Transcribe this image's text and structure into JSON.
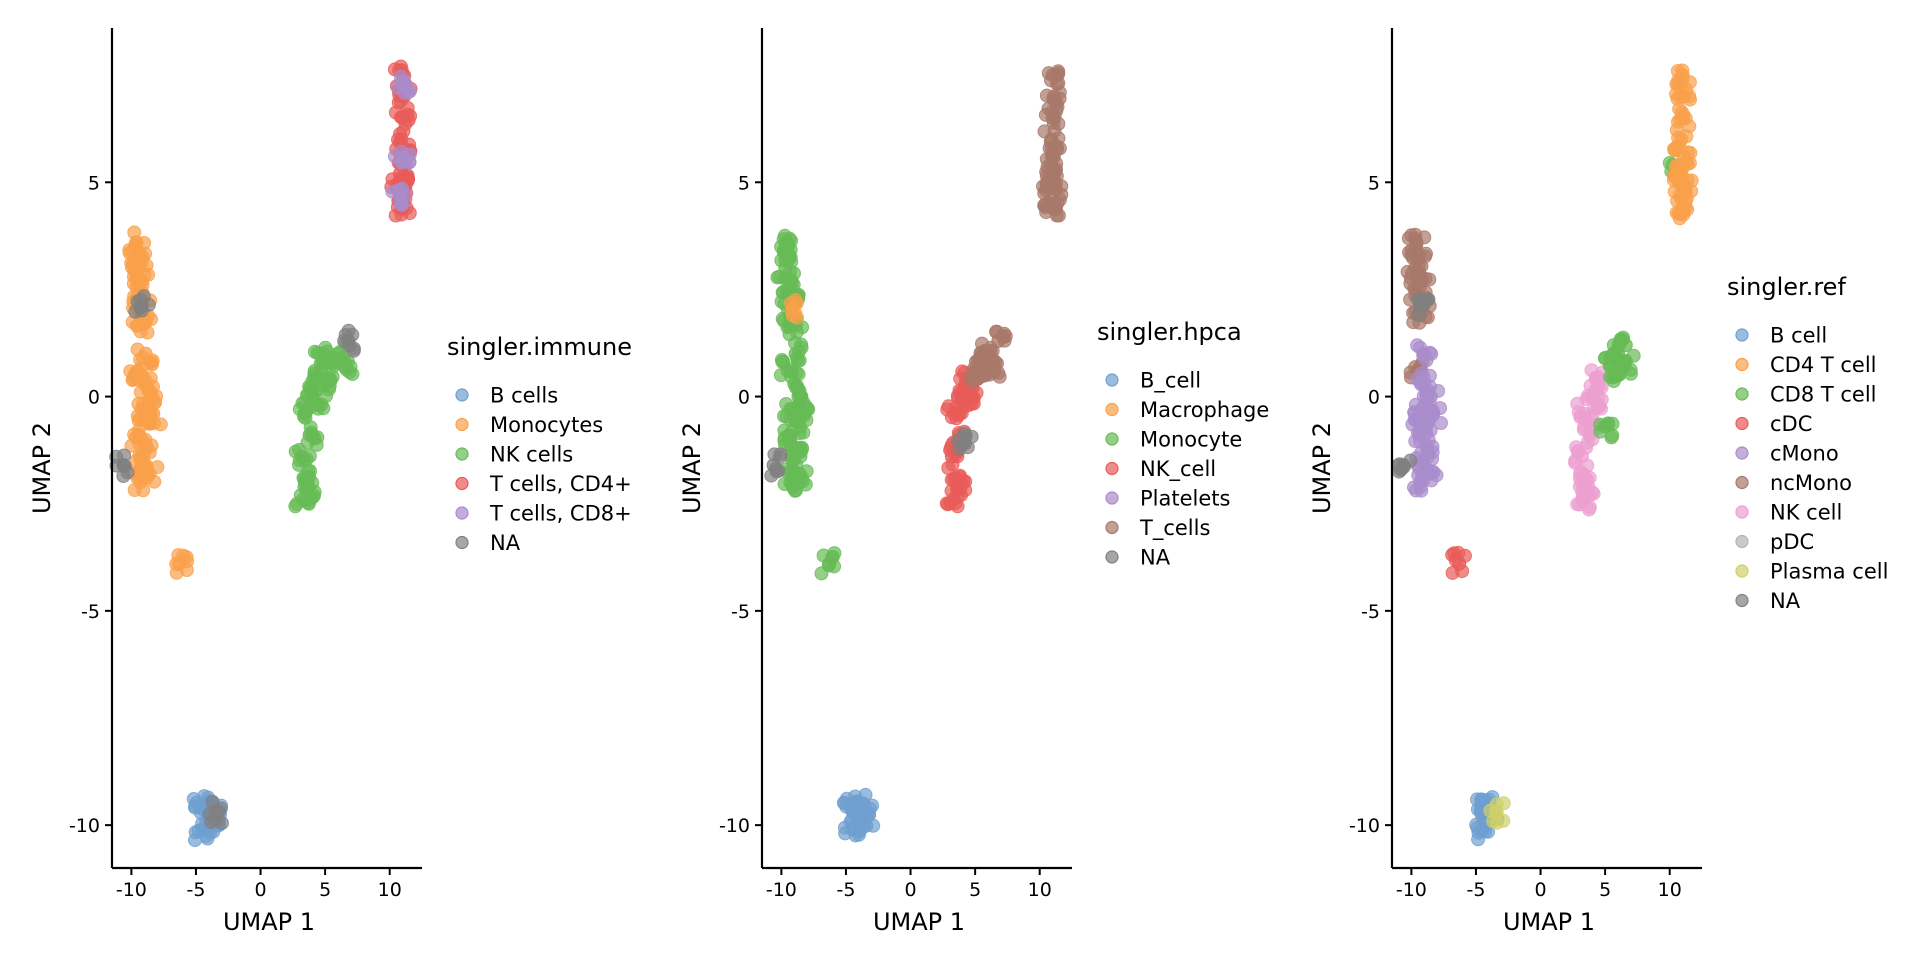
{
  "chart_data": [
    {
      "type": "scatter",
      "xlabel": "UMAP 1",
      "ylabel": "UMAP 2",
      "xlim": [
        -11.5,
        12.5
      ],
      "ylim": [
        -11,
        8.6
      ],
      "xticks": [
        -10,
        -5,
        0,
        5,
        10
      ],
      "xtick_labels": [
        "-10",
        "-5",
        "0",
        "5",
        "10"
      ],
      "yticks": [
        -10,
        -5,
        0,
        5
      ],
      "ytick_labels": [
        "-10",
        "-5",
        "0",
        "5"
      ],
      "legend": {
        "title": "singler.immune",
        "entries": [
          {
            "label": "B cells",
            "color": "#6f9fd0"
          },
          {
            "label": "Monocytes",
            "color": "#f9a04a"
          },
          {
            "label": "NK cells",
            "color": "#66bb55"
          },
          {
            "label": "T cells, CD4+",
            "color": "#e85b58"
          },
          {
            "label": "T cells, CD8+",
            "color": "#a98ccc"
          },
          {
            "label": "NA",
            "color": "#808080"
          }
        ]
      },
      "clusters": [
        {
          "label": "Monocytes",
          "points": [
            [
              -9.6,
              3.6
            ],
            [
              -9.4,
              3.3
            ],
            [
              -9.7,
              3.0
            ],
            [
              -9.2,
              2.7
            ],
            [
              -9.5,
              2.4
            ],
            [
              -9.1,
              2.2
            ],
            [
              -9.3,
              1.9
            ],
            [
              -9.0,
              1.7
            ]
          ]
        },
        {
          "label": "Monocytes",
          "points": [
            [
              -9.5,
              0.6
            ],
            [
              -9.0,
              0.3
            ],
            [
              -8.5,
              0.0
            ],
            [
              -9.2,
              -0.3
            ],
            [
              -8.7,
              -0.6
            ],
            [
              -9.4,
              -0.9
            ],
            [
              -8.8,
              -1.2
            ],
            [
              -9.1,
              -1.5
            ],
            [
              -8.6,
              -1.8
            ],
            [
              -9.3,
              -2.0
            ],
            [
              -8.3,
              -0.4
            ],
            [
              -8.9,
              1.0
            ]
          ]
        },
        {
          "label": "Monocytes",
          "points": [
            [
              -6.3,
              -3.9
            ]
          ]
        },
        {
          "label": "NK cells",
          "points": [
            [
              3.3,
              -2.4
            ],
            [
              3.5,
              -1.9
            ],
            [
              3.2,
              -1.4
            ],
            [
              3.8,
              -0.9
            ],
            [
              3.4,
              -0.4
            ],
            [
              4.0,
              0.0
            ],
            [
              4.3,
              0.4
            ],
            [
              4.8,
              0.8
            ],
            [
              5.4,
              0.9
            ],
            [
              6.0,
              1.0
            ],
            [
              6.5,
              0.7
            ],
            [
              3.7,
              -2.1
            ],
            [
              4.5,
              -0.2
            ],
            [
              5.2,
              0.4
            ]
          ]
        },
        {
          "label": "T cells, CD4+",
          "points": [
            [
              11.0,
              7.5
            ],
            [
              11.1,
              7.0
            ],
            [
              11.0,
              6.5
            ],
            [
              10.9,
              6.0
            ],
            [
              11.1,
              5.6
            ],
            [
              10.8,
              5.2
            ],
            [
              11.2,
              4.9
            ],
            [
              10.9,
              4.6
            ],
            [
              11.0,
              4.4
            ],
            [
              10.7,
              5.0
            ]
          ]
        },
        {
          "label": "T cells, CD8+",
          "points": [
            [
              11.2,
              7.3
            ],
            [
              11.0,
              5.5
            ],
            [
              10.8,
              4.7
            ]
          ]
        },
        {
          "label": "B cells",
          "points": [
            [
              -4.6,
              -9.6
            ],
            [
              -4.2,
              -9.9
            ],
            [
              -3.7,
              -9.7
            ],
            [
              -4.5,
              -10.1
            ],
            [
              -3.4,
              -9.8
            ],
            [
              -4.0,
              -9.5
            ]
          ]
        },
        {
          "label": "NA",
          "points": [
            [
              -10.6,
              -1.6
            ],
            [
              -9.2,
              2.1
            ],
            [
              -3.5,
              -9.7
            ],
            [
              6.8,
              1.3
            ]
          ]
        }
      ]
    },
    {
      "type": "scatter",
      "xlabel": "UMAP 1",
      "ylabel": "UMAP 2",
      "xlim": [
        -11.5,
        12.5
      ],
      "ylim": [
        -11,
        8.6
      ],
      "xticks": [
        -10,
        -5,
        0,
        5,
        10
      ],
      "xtick_labels": [
        "-10",
        "-5",
        "0",
        "5",
        "10"
      ],
      "yticks": [
        -10,
        -5,
        0,
        5
      ],
      "ytick_labels": [
        "-10",
        "-5",
        "0",
        "5"
      ],
      "legend": {
        "title": "singler.hpca",
        "entries": [
          {
            "label": "B_cell",
            "color": "#6f9fd0"
          },
          {
            "label": "Macrophage",
            "color": "#f9a04a"
          },
          {
            "label": "Monocyte",
            "color": "#66bb55"
          },
          {
            "label": "NK_cell",
            "color": "#e85b58"
          },
          {
            "label": "Platelets",
            "color": "#a98ccc"
          },
          {
            "label": "T_cells",
            "color": "#a8786a"
          },
          {
            "label": "NA",
            "color": "#808080"
          }
        ]
      },
      "clusters": [
        {
          "label": "Monocyte",
          "points": [
            [
              -9.6,
              3.6
            ],
            [
              -9.4,
              3.3
            ],
            [
              -9.7,
              3.0
            ],
            [
              -9.2,
              2.7
            ],
            [
              -9.5,
              2.4
            ],
            [
              -9.1,
              2.2
            ],
            [
              -9.3,
              1.9
            ],
            [
              -9.0,
              1.7
            ]
          ]
        },
        {
          "label": "Monocyte",
          "points": [
            [
              -9.5,
              0.6
            ],
            [
              -9.0,
              0.3
            ],
            [
              -8.5,
              0.0
            ],
            [
              -9.2,
              -0.3
            ],
            [
              -8.7,
              -0.6
            ],
            [
              -9.4,
              -0.9
            ],
            [
              -8.8,
              -1.2
            ],
            [
              -9.1,
              -1.5
            ],
            [
              -8.6,
              -1.8
            ],
            [
              -9.3,
              -2.0
            ],
            [
              -8.3,
              -0.4
            ],
            [
              -8.9,
              1.0
            ]
          ]
        },
        {
          "label": "Monocyte",
          "points": [
            [
              -6.3,
              -3.9
            ]
          ]
        },
        {
          "label": "Macrophage",
          "points": [
            [
              -9.2,
              2.0
            ]
          ]
        },
        {
          "label": "NK_cell",
          "points": [
            [
              3.3,
              -2.4
            ],
            [
              3.5,
              -1.9
            ],
            [
              3.2,
              -1.4
            ],
            [
              3.8,
              -0.9
            ],
            [
              3.4,
              -0.4
            ],
            [
              4.0,
              0.0
            ],
            [
              4.3,
              0.4
            ],
            [
              4.8,
              0.2
            ],
            [
              3.7,
              -2.1
            ],
            [
              4.5,
              -0.2
            ]
          ]
        },
        {
          "label": "T_cells",
          "points": [
            [
              5.4,
              0.9
            ],
            [
              6.0,
              1.0
            ],
            [
              6.5,
              0.7
            ],
            [
              5.8,
              0.5
            ],
            [
              6.8,
              1.3
            ],
            [
              5.1,
              0.6
            ]
          ]
        },
        {
          "label": "T_cells",
          "points": [
            [
              11.0,
              7.5
            ],
            [
              11.1,
              7.0
            ],
            [
              11.0,
              6.5
            ],
            [
              10.9,
              6.0
            ],
            [
              11.1,
              5.6
            ],
            [
              10.8,
              5.2
            ],
            [
              11.2,
              4.9
            ],
            [
              10.9,
              4.6
            ],
            [
              11.0,
              4.4
            ],
            [
              10.7,
              5.0
            ]
          ]
        },
        {
          "label": "B_cell",
          "points": [
            [
              -4.6,
              -9.6
            ],
            [
              -4.2,
              -9.9
            ],
            [
              -3.7,
              -9.7
            ],
            [
              -4.5,
              -10.1
            ],
            [
              -3.4,
              -9.8
            ],
            [
              -4.0,
              -9.5
            ]
          ]
        },
        {
          "label": "NA",
          "points": [
            [
              -10.6,
              -1.6
            ],
            [
              4.2,
              -1.1
            ]
          ]
        }
      ]
    },
    {
      "type": "scatter",
      "xlabel": "UMAP 1",
      "ylabel": "UMAP 2",
      "xlim": [
        -11.5,
        12.5
      ],
      "ylim": [
        -11,
        8.6
      ],
      "xticks": [
        -10,
        -5,
        0,
        5,
        10
      ],
      "xtick_labels": [
        "-10",
        "-5",
        "0",
        "5",
        "10"
      ],
      "yticks": [
        -10,
        -5,
        0,
        5
      ],
      "ytick_labels": [
        "-10",
        "-5",
        "0",
        "5"
      ],
      "legend": {
        "title": "singler.ref",
        "entries": [
          {
            "label": "B cell",
            "color": "#6f9fd0"
          },
          {
            "label": "CD4 T cell",
            "color": "#f9a04a"
          },
          {
            "label": "CD8 T cell",
            "color": "#66bb55"
          },
          {
            "label": "cDC",
            "color": "#e85b58"
          },
          {
            "label": "cMono",
            "color": "#a98ccc"
          },
          {
            "label": "ncMono",
            "color": "#a8786a"
          },
          {
            "label": "NK cell",
            "color": "#ec9fd0"
          },
          {
            "label": "pDC",
            "color": "#b4b4b4"
          },
          {
            "label": "Plasma cell",
            "color": "#d0d06a"
          },
          {
            "label": "NA",
            "color": "#808080"
          }
        ]
      },
      "clusters": [
        {
          "label": "ncMono",
          "points": [
            [
              -9.6,
              3.6
            ],
            [
              -9.4,
              3.3
            ],
            [
              -9.7,
              3.0
            ],
            [
              -9.2,
              2.7
            ],
            [
              -9.5,
              2.4
            ],
            [
              -9.1,
              2.2
            ],
            [
              -9.3,
              1.9
            ],
            [
              -9.5,
              0.6
            ]
          ]
        },
        {
          "label": "cMono",
          "points": [
            [
              -9.0,
              1.0
            ],
            [
              -9.0,
              0.3
            ],
            [
              -8.5,
              0.0
            ],
            [
              -9.2,
              -0.3
            ],
            [
              -8.7,
              -0.6
            ],
            [
              -9.4,
              -0.9
            ],
            [
              -8.8,
              -1.2
            ],
            [
              -9.1,
              -1.5
            ],
            [
              -8.6,
              -1.8
            ],
            [
              -9.3,
              -2.0
            ],
            [
              -8.3,
              -0.4
            ]
          ]
        },
        {
          "label": "cDC",
          "points": [
            [
              -6.3,
              -3.9
            ]
          ]
        },
        {
          "label": "NK cell",
          "points": [
            [
              3.3,
              -2.4
            ],
            [
              3.5,
              -1.9
            ],
            [
              3.2,
              -1.4
            ],
            [
              3.8,
              -0.9
            ],
            [
              3.4,
              -0.4
            ],
            [
              4.0,
              0.0
            ],
            [
              4.3,
              0.4
            ],
            [
              3.7,
              -2.1
            ],
            [
              4.5,
              -0.2
            ]
          ]
        },
        {
          "label": "CD8 T cell",
          "points": [
            [
              5.4,
              0.9
            ],
            [
              6.0,
              1.0
            ],
            [
              6.5,
              0.7
            ],
            [
              5.8,
              0.5
            ],
            [
              6.6,
              1.2
            ],
            [
              5.0,
              -0.7
            ],
            [
              10.5,
              5.3
            ]
          ]
        },
        {
          "label": "CD4 T cell",
          "points": [
            [
              11.0,
              7.5
            ],
            [
              11.1,
              7.0
            ],
            [
              11.0,
              6.5
            ],
            [
              10.9,
              6.0
            ],
            [
              11.1,
              5.6
            ],
            [
              10.8,
              5.2
            ],
            [
              11.2,
              4.9
            ],
            [
              10.9,
              4.6
            ],
            [
              11.0,
              4.4
            ],
            [
              10.7,
              5.0
            ]
          ]
        },
        {
          "label": "B cell",
          "points": [
            [
              -4.6,
              -9.6
            ],
            [
              -4.2,
              -9.9
            ],
            [
              -3.7,
              -9.7
            ],
            [
              -4.5,
              -10.1
            ],
            [
              -4.0,
              -9.5
            ]
          ]
        },
        {
          "label": "Plasma cell",
          "points": [
            [
              -3.4,
              -9.7
            ]
          ]
        },
        {
          "label": "NA",
          "points": [
            [
              -10.6,
              -1.6
            ],
            [
              -9.2,
              2.1
            ]
          ]
        }
      ]
    }
  ]
}
